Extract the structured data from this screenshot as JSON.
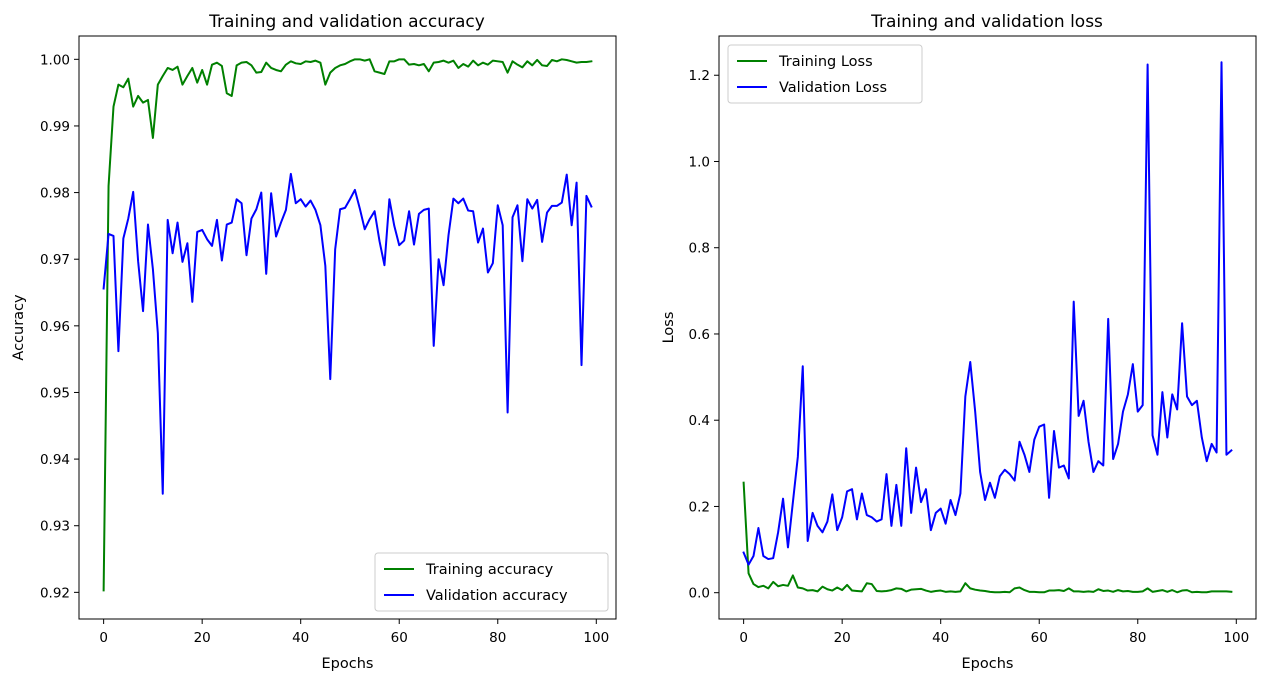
{
  "chart_data": [
    {
      "type": "line",
      "title": "Training and validation accuracy",
      "xlabel": "Epochs",
      "ylabel": "Accuracy",
      "xlim": [
        -5,
        104
      ],
      "ylim": [
        0.916,
        1.0035
      ],
      "xticks": [
        0,
        20,
        40,
        60,
        80,
        100
      ],
      "xtick_labels": [
        "0",
        "20",
        "40",
        "60",
        "80",
        "100"
      ],
      "yticks": [
        0.92,
        0.93,
        0.94,
        0.95,
        0.96,
        0.97,
        0.98,
        0.99,
        1.0
      ],
      "ytick_labels": [
        "0.92",
        "0.93",
        "0.94",
        "0.95",
        "0.96",
        "0.97",
        "0.98",
        "0.99",
        "1.00"
      ],
      "legend_position": "lower-right",
      "series": [
        {
          "name": "Training accuracy",
          "color": "#008000",
          "values": [
            0.9203,
            0.981,
            0.9929,
            0.9962,
            0.9958,
            0.9971,
            0.9929,
            0.9945,
            0.9935,
            0.9939,
            0.9882,
            0.9962,
            0.9975,
            0.9987,
            0.9984,
            0.9989,
            0.9962,
            0.9975,
            0.9987,
            0.9965,
            0.9984,
            0.9962,
            0.9992,
            0.9995,
            0.999,
            0.9949,
            0.9945,
            0.9991,
            0.9995,
            0.9996,
            0.9991,
            0.998,
            0.9981,
            0.9995,
            0.9987,
            0.9984,
            0.9982,
            0.9992,
            0.9997,
            0.9994,
            0.9993,
            0.9997,
            0.9996,
            0.9998,
            0.9995,
            0.9962,
            0.998,
            0.9987,
            0.9991,
            0.9993,
            0.9997,
            1.0,
            1.0,
            0.9998,
            1.0,
            0.9982,
            0.998,
            0.9978,
            0.9997,
            0.9997,
            1.0,
            1.0,
            0.9992,
            0.9993,
            0.9991,
            0.9993,
            0.9982,
            0.9995,
            0.9996,
            0.9998,
            0.9995,
            0.9998,
            0.9987,
            0.9993,
            0.9989,
            0.9998,
            0.9991,
            0.9995,
            0.9992,
            0.9998,
            0.9997,
            0.9996,
            0.998,
            0.9997,
            0.9992,
            0.9988,
            0.9997,
            0.9991,
            0.9999,
            0.9991,
            0.999,
            0.9999,
            0.9997,
            1.0,
            0.9999,
            0.9997,
            0.9995,
            0.9996,
            0.9996,
            0.9997
          ]
        },
        {
          "name": "Validation accuracy",
          "color": "#0000ff",
          "values": [
            0.9656,
            0.9738,
            0.9735,
            0.9562,
            0.9731,
            0.9761,
            0.9801,
            0.9697,
            0.9622,
            0.9752,
            0.9685,
            0.9589,
            0.9348,
            0.9759,
            0.9709,
            0.9755,
            0.9696,
            0.9724,
            0.9636,
            0.9741,
            0.9744,
            0.973,
            0.972,
            0.9759,
            0.9698,
            0.9752,
            0.9755,
            0.979,
            0.9784,
            0.9706,
            0.9761,
            0.9775,
            0.98,
            0.9678,
            0.9799,
            0.9734,
            0.9755,
            0.9774,
            0.9828,
            0.9784,
            0.979,
            0.9779,
            0.9788,
            0.9774,
            0.9751,
            0.969,
            0.952,
            0.9715,
            0.9775,
            0.9777,
            0.979,
            0.9804,
            0.9776,
            0.9745,
            0.976,
            0.9772,
            0.9727,
            0.9691,
            0.979,
            0.975,
            0.9721,
            0.9728,
            0.9772,
            0.9722,
            0.9768,
            0.9774,
            0.9776,
            0.957,
            0.97,
            0.9661,
            0.9736,
            0.9791,
            0.9784,
            0.9791,
            0.9773,
            0.9772,
            0.9725,
            0.9746,
            0.968,
            0.9694,
            0.9781,
            0.9751,
            0.947,
            0.9763,
            0.9781,
            0.9697,
            0.979,
            0.9776,
            0.9789,
            0.9726,
            0.977,
            0.978,
            0.978,
            0.9785,
            0.9827,
            0.9751,
            0.9815,
            0.9541,
            0.9795,
            0.9779
          ]
        }
      ]
    },
    {
      "type": "line",
      "title": "Training and validation loss",
      "xlabel": "Epochs",
      "ylabel": "Loss",
      "xlim": [
        -5,
        104
      ],
      "ylim": [
        -0.061,
        1.291
      ],
      "xticks": [
        0,
        20,
        40,
        60,
        80,
        100
      ],
      "xtick_labels": [
        "0",
        "20",
        "40",
        "60",
        "80",
        "100"
      ],
      "yticks": [
        0.0,
        0.2,
        0.4,
        0.6,
        0.8,
        1.0,
        1.2
      ],
      "ytick_labels": [
        "0.0",
        "0.2",
        "0.4",
        "0.6",
        "0.8",
        "1.0",
        "1.2"
      ],
      "legend_position": "upper-left",
      "series": [
        {
          "name": "Training Loss",
          "color": "#008000",
          "values": [
            0.255,
            0.045,
            0.02,
            0.013,
            0.016,
            0.01,
            0.025,
            0.015,
            0.018,
            0.016,
            0.04,
            0.012,
            0.01,
            0.005,
            0.006,
            0.003,
            0.014,
            0.008,
            0.005,
            0.012,
            0.006,
            0.018,
            0.005,
            0.004,
            0.003,
            0.022,
            0.02,
            0.004,
            0.003,
            0.004,
            0.006,
            0.01,
            0.009,
            0.003,
            0.007,
            0.008,
            0.009,
            0.005,
            0.002,
            0.004,
            0.005,
            0.002,
            0.003,
            0.002,
            0.003,
            0.022,
            0.01,
            0.007,
            0.005,
            0.004,
            0.002,
            0.001,
            0.001,
            0.002,
            0.001,
            0.01,
            0.012,
            0.006,
            0.002,
            0.002,
            0.001,
            0.001,
            0.005,
            0.005,
            0.006,
            0.004,
            0.01,
            0.003,
            0.003,
            0.002,
            0.003,
            0.002,
            0.008,
            0.004,
            0.005,
            0.002,
            0.006,
            0.003,
            0.004,
            0.002,
            0.002,
            0.003,
            0.01,
            0.002,
            0.004,
            0.006,
            0.002,
            0.006,
            0.001,
            0.005,
            0.006,
            0.001,
            0.002,
            0.001,
            0.001,
            0.003,
            0.003,
            0.003,
            0.003,
            0.002
          ]
        },
        {
          "name": "Validation Loss",
          "color": "#0000ff",
          "values": [
            0.093,
            0.065,
            0.085,
            0.15,
            0.085,
            0.078,
            0.08,
            0.14,
            0.218,
            0.105,
            0.21,
            0.315,
            0.525,
            0.12,
            0.185,
            0.155,
            0.14,
            0.165,
            0.228,
            0.145,
            0.175,
            0.235,
            0.24,
            0.17,
            0.23,
            0.18,
            0.175,
            0.165,
            0.17,
            0.275,
            0.155,
            0.25,
            0.155,
            0.335,
            0.185,
            0.29,
            0.21,
            0.24,
            0.145,
            0.185,
            0.195,
            0.16,
            0.215,
            0.18,
            0.23,
            0.455,
            0.535,
            0.42,
            0.28,
            0.215,
            0.255,
            0.22,
            0.27,
            0.285,
            0.275,
            0.26,
            0.35,
            0.32,
            0.28,
            0.355,
            0.385,
            0.39,
            0.22,
            0.375,
            0.29,
            0.295,
            0.265,
            0.675,
            0.41,
            0.445,
            0.35,
            0.28,
            0.305,
            0.295,
            0.635,
            0.31,
            0.345,
            0.42,
            0.46,
            0.53,
            0.42,
            0.435,
            1.225,
            0.365,
            0.32,
            0.465,
            0.36,
            0.46,
            0.425,
            0.625,
            0.455,
            0.435,
            0.445,
            0.36,
            0.305,
            0.345,
            0.325,
            1.23,
            0.32,
            0.33
          ]
        }
      ]
    }
  ]
}
